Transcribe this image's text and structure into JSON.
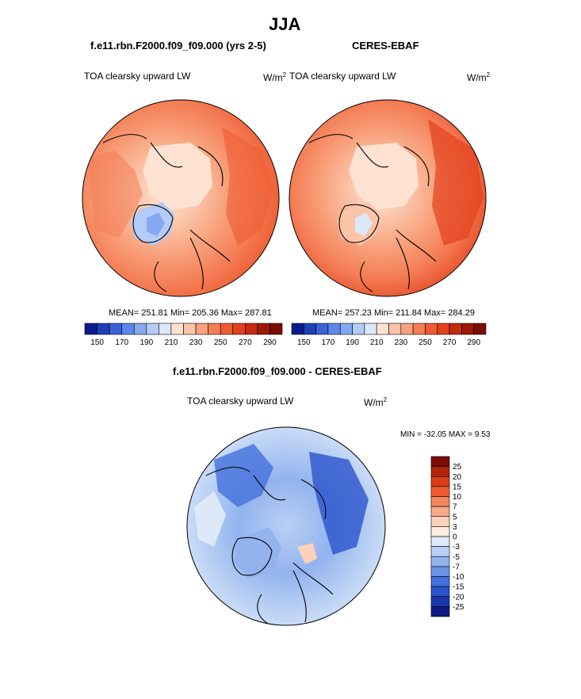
{
  "page_title": "JJA",
  "panels": [
    {
      "header": "f.e11.rbn.F2000.f09_f09.000 (yrs 2-5)",
      "variable": "TOA clearsky upward LW",
      "units": "W/m",
      "units_sup": "2",
      "stats": "MEAN= 251.81  Min= 205.36  Max= 287.81"
    },
    {
      "header": "CERES-EBAF",
      "variable": "TOA clearsky upward LW",
      "units": "W/m",
      "units_sup": "2",
      "stats": "MEAN= 257.23  Min= 211.84  Max= 284.29"
    },
    {
      "header": "f.e11.rbn.F2000.f09_f09.000 - CERES-EBAF",
      "variable": "TOA clearsky upward LW",
      "units": "W/m",
      "units_sup": "2",
      "stats": "MIN = -32.05 MAX =   9.53"
    }
  ],
  "colors": {
    "abs_scale": [
      "#0c1a8c",
      "#1f3fb8",
      "#3a62d6",
      "#5d86e8",
      "#86a8f0",
      "#b3cbf6",
      "#dbe8fa",
      "#fde2d2",
      "#fbc4a8",
      "#f8a17c",
      "#f47d55",
      "#ee5c33",
      "#e2401c",
      "#c52a10",
      "#9e1a08",
      "#7a0c02"
    ],
    "diff_scale": [
      "#7a0c02",
      "#b5220c",
      "#dc3c18",
      "#ef5b30",
      "#f4845c",
      "#f8a98a",
      "#fbd0bd",
      "#fdecdf",
      "#dde9f8",
      "#b9d0f4",
      "#92b3ee",
      "#6a92e6",
      "#4471dc",
      "#2a53cc",
      "#1a36ad",
      "#0d1a84"
    ]
  },
  "chart_data": [
    {
      "type": "heatmap",
      "projection": "north polar stereographic",
      "title": "f.e11.rbn.F2000.f09_f09.000 (yrs 2-5)",
      "variable": "TOA clearsky upward LW",
      "units": "W/m2",
      "mean": 251.81,
      "min": 205.36,
      "max": 287.81,
      "colorbar_levels": [
        150,
        160,
        170,
        180,
        190,
        200,
        210,
        220,
        230,
        240,
        250,
        260,
        270,
        280,
        290
      ],
      "colorbar_tick_labels": [
        "150",
        "170",
        "190",
        "210",
        "230",
        "250",
        "270",
        "290"
      ]
    },
    {
      "type": "heatmap",
      "projection": "north polar stereographic",
      "title": "CERES-EBAF",
      "variable": "TOA clearsky upward LW",
      "units": "W/m2",
      "mean": 257.23,
      "min": 211.84,
      "max": 284.29,
      "colorbar_levels": [
        150,
        160,
        170,
        180,
        190,
        200,
        210,
        220,
        230,
        240,
        250,
        260,
        270,
        280,
        290
      ],
      "colorbar_tick_labels": [
        "150",
        "170",
        "190",
        "210",
        "230",
        "250",
        "270",
        "290"
      ]
    },
    {
      "type": "heatmap",
      "projection": "north polar stereographic",
      "title": "f.e11.rbn.F2000.f09_f09.000 - CERES-EBAF",
      "variable": "TOA clearsky upward LW",
      "units": "W/m2",
      "min": -32.05,
      "max": 9.53,
      "colorbar_levels": [
        25,
        20,
        15,
        10,
        7,
        5,
        3,
        0,
        -3,
        -5,
        -7,
        -10,
        -15,
        -20,
        -25
      ],
      "colorbar_tick_labels": [
        "25",
        "20",
        "15",
        "10",
        "7",
        "5",
        "3",
        "0",
        "-3",
        "-5",
        "-7",
        "-10",
        "-15",
        "-20",
        "-25"
      ]
    }
  ]
}
